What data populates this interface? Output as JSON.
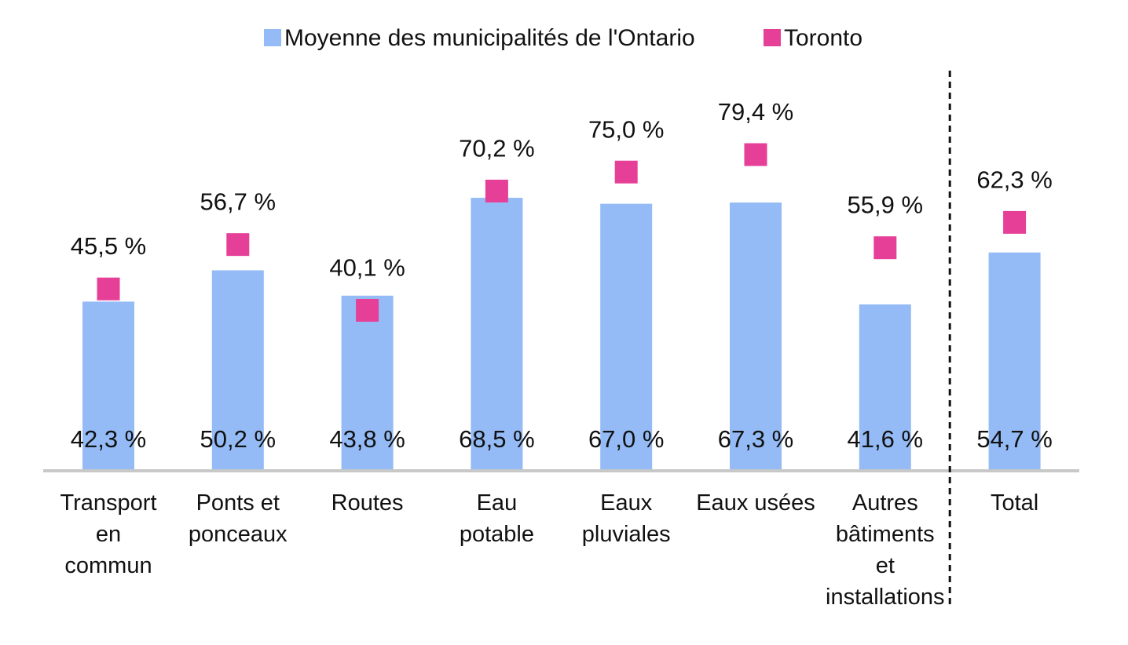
{
  "chart_data": {
    "type": "bar",
    "categories": [
      [
        "Transport",
        "en",
        "commun"
      ],
      [
        "Ponts et",
        "ponceaux"
      ],
      [
        "Routes"
      ],
      [
        "Eau",
        "potable"
      ],
      [
        "Eaux",
        "pluviales"
      ],
      [
        "Eaux usées"
      ],
      [
        "Autres",
        "bâtiments",
        "et",
        "installations"
      ],
      [
        "Total"
      ]
    ],
    "ylim": [
      0,
      100
    ],
    "grid": false,
    "legend_position": "top",
    "series": [
      {
        "name": "Moyenne des municipalités de l'Ontario",
        "type": "bar",
        "color": "#94bbf5",
        "values": [
          42.3,
          50.2,
          43.8,
          68.5,
          67.0,
          67.3,
          41.6,
          54.7
        ],
        "labels": [
          "42,3 %",
          "50,2 %",
          "43,8 %",
          "68,5 %",
          "67,0 %",
          "67,3 %",
          "41,6 %",
          "54,7 %"
        ]
      },
      {
        "name": "Toronto",
        "type": "marker",
        "color": "#e63f97",
        "values": [
          45.5,
          56.7,
          40.1,
          70.2,
          75.0,
          79.4,
          55.9,
          62.3
        ],
        "labels": [
          "45,5 %",
          "56,7 %",
          "40,1 %",
          "70,2 %",
          "75,0 %",
          "79,4 %",
          "55,9 %",
          "62,3 %"
        ]
      }
    ],
    "separator_before_category": 7,
    "axis_color": "#c8c8c8"
  }
}
